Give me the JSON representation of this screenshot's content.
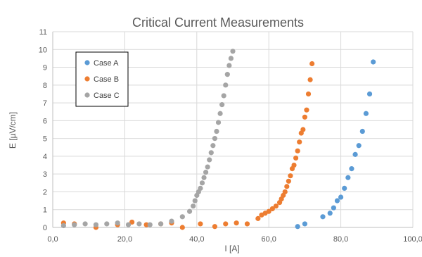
{
  "chart_data": {
    "type": "scatter",
    "title": "Critical Current Measurements",
    "xlabel": "I [A]",
    "ylabel": "E [µV/cm]",
    "xlim": [
      0,
      100
    ],
    "ylim": [
      0,
      11
    ],
    "x_ticks": [
      "0,0",
      "20,0",
      "40,0",
      "60,0",
      "80,0",
      "100,0"
    ],
    "y_ticks": [
      "0",
      "1",
      "2",
      "3",
      "4",
      "5",
      "6",
      "7",
      "8",
      "9",
      "10",
      "11"
    ],
    "grid": true,
    "legend_position": "top-left",
    "series": [
      {
        "name": "Case A",
        "color": "#5b9bd5",
        "x": [
          68.0,
          70.0,
          75.0,
          77.0,
          78.0,
          79.0,
          80.0,
          81.0,
          82.0,
          83.0,
          84.0,
          85.0,
          86.0,
          87.0,
          88.0,
          89.0
        ],
        "y": [
          0.05,
          0.2,
          0.6,
          0.8,
          1.1,
          1.5,
          1.7,
          2.2,
          2.8,
          3.3,
          4.1,
          4.6,
          5.4,
          6.4,
          7.5,
          9.3
        ]
      },
      {
        "name": "Case B",
        "color": "#ed7d31",
        "x": [
          3,
          6,
          12,
          18,
          22,
          26,
          30,
          33,
          36,
          41,
          45,
          48,
          51,
          54,
          57,
          58,
          59,
          60,
          61,
          62,
          63,
          63.5,
          64,
          64.5,
          65,
          65.5,
          66,
          66.5,
          67,
          67.5,
          68,
          68.5,
          69,
          69.5,
          70,
          70.5,
          71,
          71.5,
          72
        ],
        "y": [
          0.25,
          0.2,
          0.0,
          0.15,
          0.3,
          0.15,
          0.2,
          0.25,
          0.0,
          0.2,
          0.05,
          0.2,
          0.25,
          0.2,
          0.5,
          0.7,
          0.8,
          0.9,
          1.05,
          1.2,
          1.4,
          1.6,
          1.8,
          2.0,
          2.3,
          2.6,
          2.9,
          3.3,
          3.5,
          3.9,
          4.3,
          4.8,
          5.3,
          5.5,
          6.2,
          6.6,
          7.5,
          8.3,
          9.2
        ]
      },
      {
        "name": "Case C",
        "color": "#a5a5a5",
        "x": [
          3,
          6,
          9,
          12,
          15,
          18,
          21,
          24,
          27,
          30,
          33,
          36,
          38,
          39,
          39.5,
          40,
          40.5,
          41,
          41.5,
          42,
          42.5,
          43,
          43.5,
          44,
          44.5,
          45,
          45.5,
          46,
          46.5,
          47,
          47.5,
          48,
          48.5,
          49,
          49.5,
          50
        ],
        "y": [
          0.1,
          0.15,
          0.2,
          0.15,
          0.2,
          0.25,
          0.15,
          0.2,
          0.15,
          0.2,
          0.35,
          0.6,
          0.9,
          1.2,
          1.5,
          1.8,
          2.0,
          2.2,
          2.5,
          2.8,
          3.1,
          3.4,
          3.8,
          4.2,
          4.6,
          5.0,
          5.4,
          5.9,
          6.4,
          6.9,
          7.4,
          8.0,
          8.6,
          9.1,
          9.5,
          9.9
        ]
      }
    ]
  }
}
